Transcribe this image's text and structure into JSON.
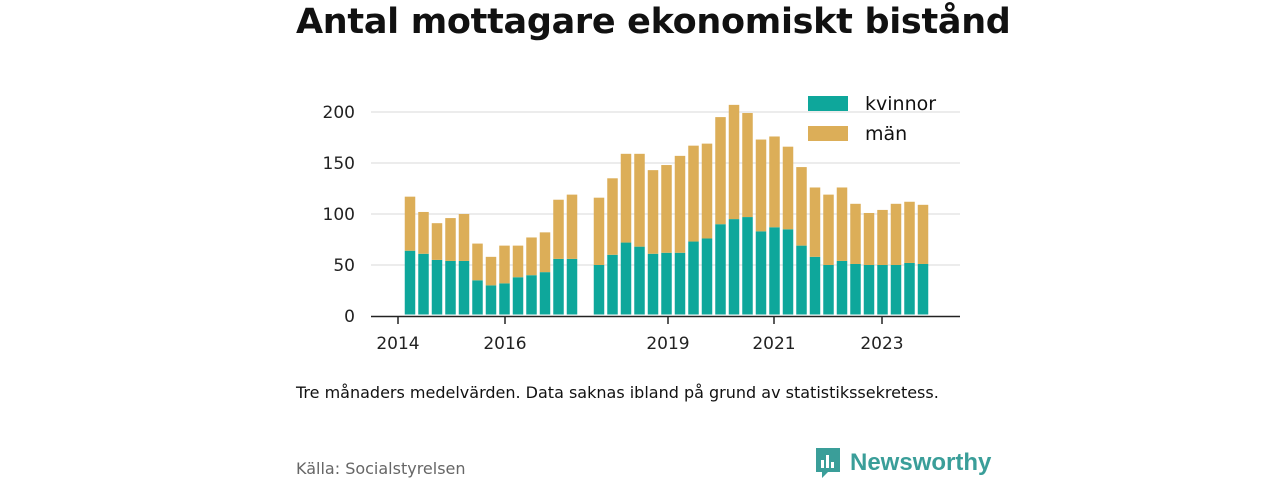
{
  "chart_data": {
    "type": "bar",
    "stacked": true,
    "title": "Antal mottagare ekonomiskt bistånd",
    "xlabel": "",
    "ylabel": "",
    "ylim": [
      0,
      220
    ],
    "yticks": [
      0,
      50,
      100,
      150,
      200
    ],
    "xticks": [
      "2014",
      "2016",
      "2019",
      "2021",
      "2023"
    ],
    "grid": true,
    "legend": "top-right",
    "series": [
      {
        "name": "kvinnor",
        "color": "#0ea79b",
        "values": [
          64,
          61,
          55,
          54,
          54,
          35,
          30,
          32,
          38,
          40,
          43,
          56,
          56,
          null,
          50,
          60,
          72,
          68,
          61,
          62,
          62,
          73,
          76,
          90,
          95,
          97,
          83,
          87,
          85,
          69,
          58,
          50,
          54,
          51,
          50,
          50,
          50,
          52,
          51
        ]
      },
      {
        "name": "män",
        "color": "#dcae58",
        "values": [
          53,
          41,
          36,
          42,
          46,
          36,
          28,
          37,
          31,
          37,
          39,
          58,
          63,
          null,
          66,
          75,
          87,
          91,
          82,
          86,
          95,
          94,
          93,
          105,
          112,
          102,
          90,
          89,
          81,
          77,
          68,
          69,
          72,
          59,
          51,
          54,
          60,
          60,
          58
        ]
      }
    ]
  },
  "note": "Tre månaders medelvärden. Data saknas ibland på grund av statistikssekretess.",
  "source": "Källa: Socialstyrelsen",
  "brand": {
    "name": "Newsworthy",
    "icon": "newsworthy-logo-icon",
    "color": "#3a9e99"
  }
}
